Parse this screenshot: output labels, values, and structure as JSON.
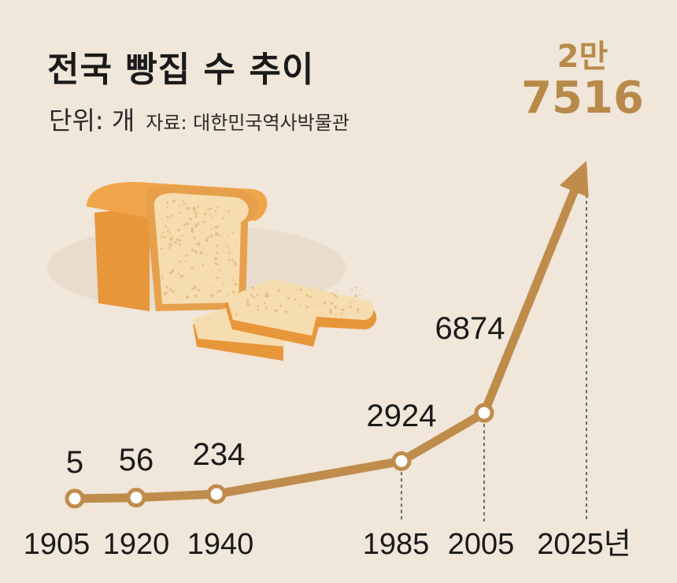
{
  "header": {
    "title": "전국 빵집 수 추이",
    "unit": "단위: 개",
    "source": "자료: 대한민국역사박물관"
  },
  "highlight": {
    "line1": "2만",
    "line2": "7516"
  },
  "chart_data": {
    "type": "line",
    "title": "전국 빵집 수 추이",
    "ylabel": "단위: 개",
    "xlabel": "",
    "x_labels": [
      "1905",
      "1920",
      "1940",
      "1985",
      "2005",
      "2025년"
    ],
    "x": [
      1905,
      1920,
      1940,
      1985,
      2005,
      2025
    ],
    "values": [
      5,
      56,
      234,
      2924,
      6874,
      27516
    ],
    "value_labels": [
      "5",
      "56",
      "234",
      "2924",
      "6874",
      "2만 7516"
    ],
    "scale": "non-linear",
    "grid": false,
    "legend": "none"
  },
  "colors": {
    "background": "#f0e6d9",
    "line": "#bf8c4c",
    "highlight_text": "#b88a4a",
    "text": "#1a1a1a",
    "bread_crust": "#e8963a",
    "bread_crumb": "#f6ddb0"
  },
  "icons": {
    "illustration": "bread-loaf-icon"
  }
}
